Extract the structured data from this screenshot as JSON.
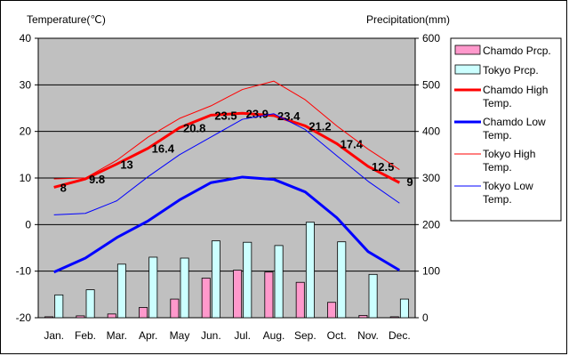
{
  "chart_data": {
    "type": "bar",
    "left_axis_title": "Temperature(℃)",
    "right_axis_title": "Precipitation(mm)",
    "categories": [
      "Jan.",
      "Feb.",
      "Mar.",
      "Apr.",
      "May",
      "Jun.",
      "Jul.",
      "Aug.",
      "Sep.",
      "Oct.",
      "Nov.",
      "Dec."
    ],
    "temp_ylim": [
      -20,
      40
    ],
    "temp_ticks": [
      40,
      30,
      20,
      10,
      0,
      -10,
      -20
    ],
    "precip_ylim": [
      0,
      600
    ],
    "precip_ticks": [
      600,
      500,
      400,
      300,
      200,
      100,
      0
    ],
    "grid": true,
    "legend_placement": "right",
    "bar_series": [
      {
        "name": "Chamdo Prcp.",
        "color": "#ff99cc",
        "values": [
          2,
          4,
          8,
          22,
          40,
          85,
          102,
          98,
          76,
          33,
          5,
          2
        ]
      },
      {
        "name": "Tokyo Prcp.",
        "color": "#ccffff",
        "values": [
          49,
          60,
          115,
          130,
          128,
          165,
          162,
          155,
          205,
          163,
          93,
          40
        ]
      }
    ],
    "line_series": [
      {
        "name": "Chamdo High Temp.",
        "color": "#ff0000",
        "width": 3,
        "values": [
          8,
          9.8,
          13,
          16.4,
          20.8,
          23.5,
          23.9,
          23.4,
          21.2,
          17.4,
          12.5,
          9
        ],
        "labels": [
          "8",
          "9.8",
          "13",
          "16.4",
          "20.8",
          "23.5",
          "23.9",
          "23.4",
          "21.2",
          "17.4",
          "12.5",
          "9"
        ]
      },
      {
        "name": "Chamdo Low Temp.",
        "color": "#0000ff",
        "width": 3,
        "values": [
          -10.2,
          -7.2,
          -2.8,
          0.8,
          5.3,
          9,
          10.2,
          9.7,
          7,
          1.5,
          -5.8,
          -9.8
        ]
      },
      {
        "name": "Tokyo High Temp.",
        "color": "#ff0000",
        "width": 1,
        "values": [
          9.8,
          10,
          13.8,
          18.8,
          22.8,
          25.5,
          29,
          30.8,
          26.8,
          21.2,
          16.2,
          11.8
        ]
      },
      {
        "name": "Tokyo Low Temp.",
        "color": "#0000ff",
        "width": 1,
        "values": [
          2.1,
          2.4,
          5.1,
          10.3,
          15,
          18.8,
          22.6,
          23.8,
          20.4,
          14.8,
          9.3,
          4.6
        ]
      }
    ],
    "legend": [
      {
        "label": "Chamdo Prcp.",
        "kind": "bar",
        "color": "#ff99cc"
      },
      {
        "label": "Tokyo Prcp.",
        "kind": "bar",
        "color": "#ccffff"
      },
      {
        "label": "Chamdo High Temp.",
        "kind": "line",
        "color": "#ff0000",
        "width": 3
      },
      {
        "label": "Chamdo Low Temp.",
        "kind": "line",
        "color": "#0000ff",
        "width": 3
      },
      {
        "label": "Tokyo High Temp.",
        "kind": "line",
        "color": "#ff0000",
        "width": 1
      },
      {
        "label": "Tokyo Low Temp.",
        "kind": "line",
        "color": "#0000ff",
        "width": 1
      }
    ]
  }
}
